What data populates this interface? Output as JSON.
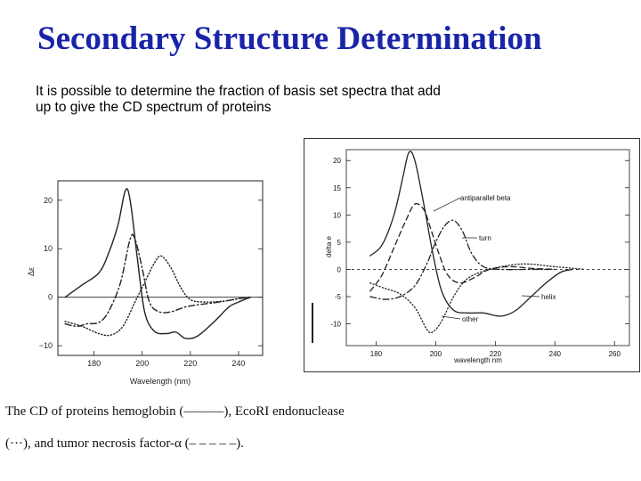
{
  "slide": {
    "title": "Secondary Structure Determination",
    "intro_line1": "It is possible to determine the fraction of basis set spectra that add",
    "intro_line2": "up to give the CD spectrum of proteins"
  },
  "caption": {
    "line1": "The CD of proteins hemoglobin (———), EcoRI endonuclease",
    "line2": "(···), and tumor necrosis factor-α (– – – – –)."
  },
  "chart_data": [
    {
      "type": "line",
      "xlabel": "Wavelength (nm)",
      "ylabel": "Δε",
      "xlim": [
        165,
        250
      ],
      "ylim": [
        -12,
        24
      ],
      "x_ticks": [
        "180",
        "200",
        "220",
        "240"
      ],
      "y_ticks": [
        "20",
        "10",
        "0",
        "−10"
      ],
      "series": [
        {
          "name": "hemoglobin",
          "style": "solid",
          "points": [
            [
              168,
              0
            ],
            [
              175,
              2.5
            ],
            [
              182,
              5
            ],
            [
              186,
              9
            ],
            [
              190,
              15
            ],
            [
              193,
              22
            ],
            [
              195,
              20
            ],
            [
              198,
              8
            ],
            [
              201,
              -3
            ],
            [
              205,
              -7
            ],
            [
              210,
              -7.5
            ],
            [
              214,
              -7.2
            ],
            [
              218,
              -8.5
            ],
            [
              223,
              -8
            ],
            [
              230,
              -5
            ],
            [
              236,
              -2
            ],
            [
              240,
              -1
            ],
            [
              245,
              0
            ]
          ]
        },
        {
          "name": "EcoRI endonuclease",
          "style": "dotted",
          "points": [
            [
              168,
              -5
            ],
            [
              175,
              -6
            ],
            [
              182,
              -7.5
            ],
            [
              187,
              -7.8
            ],
            [
              192,
              -6
            ],
            [
              197,
              -1
            ],
            [
              201,
              3
            ],
            [
              205,
              7
            ],
            [
              208,
              8.5
            ],
            [
              212,
              6
            ],
            [
              216,
              2
            ],
            [
              220,
              -0.5
            ],
            [
              226,
              -1
            ],
            [
              234,
              -0.8
            ],
            [
              240,
              -0.3
            ],
            [
              245,
              0
            ]
          ]
        },
        {
          "name": "tumor necrosis factor-α",
          "style": "dashdot",
          "points": [
            [
              168,
              -5.5
            ],
            [
              173,
              -6
            ],
            [
              177,
              -5.5
            ],
            [
              182,
              -5.2
            ],
            [
              186,
              -3
            ],
            [
              191,
              3
            ],
            [
              195,
              12
            ],
            [
              197,
              12
            ],
            [
              200,
              6
            ],
            [
              203,
              -1
            ],
            [
              207,
              -3
            ],
            [
              212,
              -3
            ],
            [
              218,
              -2
            ],
            [
              224,
              -1.5
            ],
            [
              232,
              -1
            ],
            [
              240,
              -0.3
            ],
            [
              245,
              0
            ]
          ]
        }
      ]
    },
    {
      "type": "line",
      "xlabel": "wavelength nm",
      "ylabel": "delta e",
      "xlim": [
        170,
        265
      ],
      "ylim": [
        -14,
        22
      ],
      "x_ticks": [
        "180",
        "200",
        "220",
        "240",
        "260"
      ],
      "y_ticks": [
        "20",
        "15",
        "10",
        "5",
        "0",
        "-5",
        "-10"
      ],
      "series": [
        {
          "name": "helix",
          "style": "solid",
          "points": [
            [
              178,
              2.5
            ],
            [
              182,
              4.5
            ],
            [
              186,
              10
            ],
            [
              189,
              17
            ],
            [
              191,
              21.5
            ],
            [
              193,
              20
            ],
            [
              196,
              12
            ],
            [
              199,
              3
            ],
            [
              202,
              -4
            ],
            [
              206,
              -7.5
            ],
            [
              211,
              -8
            ],
            [
              216,
              -8
            ],
            [
              220,
              -8.5
            ],
            [
              223,
              -8.5
            ],
            [
              227,
              -7.5
            ],
            [
              232,
              -5
            ],
            [
              237,
              -2.5
            ],
            [
              242,
              -0.5
            ],
            [
              246,
              0
            ]
          ]
        },
        {
          "name": "antiparallel beta",
          "style": "dashed",
          "points": [
            [
              178,
              -4
            ],
            [
              182,
              -1
            ],
            [
              186,
              4
            ],
            [
              190,
              9
            ],
            [
              193,
              12
            ],
            [
              196,
              11
            ],
            [
              198,
              8
            ],
            [
              201,
              3
            ],
            [
              204,
              -1
            ],
            [
              208,
              -2.5
            ],
            [
              213,
              -1.5
            ],
            [
              218,
              0
            ],
            [
              225,
              0.5
            ],
            [
              232,
              0.2
            ],
            [
              240,
              0
            ]
          ]
        },
        {
          "name": "turn",
          "style": "dashdot",
          "points": [
            [
              178,
              -5
            ],
            [
              183,
              -5.5
            ],
            [
              188,
              -5
            ],
            [
              193,
              -3
            ],
            [
              197,
              1
            ],
            [
              200,
              5
            ],
            [
              203,
              8
            ],
            [
              206,
              9
            ],
            [
              209,
              7
            ],
            [
              212,
              3
            ],
            [
              216,
              0.5
            ],
            [
              222,
              0
            ],
            [
              232,
              0
            ],
            [
              240,
              0
            ]
          ]
        },
        {
          "name": "other",
          "style": "dotted",
          "points": [
            [
              178,
              -2.5
            ],
            [
              183,
              -3.5
            ],
            [
              188,
              -4.5
            ],
            [
              193,
              -7
            ],
            [
              197,
              -11
            ],
            [
              199,
              -11.5
            ],
            [
              202,
              -9.5
            ],
            [
              206,
              -5
            ],
            [
              210,
              -2
            ],
            [
              215,
              -0.5
            ],
            [
              222,
              0.5
            ],
            [
              230,
              1
            ],
            [
              240,
              0.5
            ],
            [
              250,
              0
            ]
          ]
        }
      ],
      "annotations": [
        "antiparallel beta",
        "turn",
        "helix",
        "other"
      ]
    }
  ]
}
